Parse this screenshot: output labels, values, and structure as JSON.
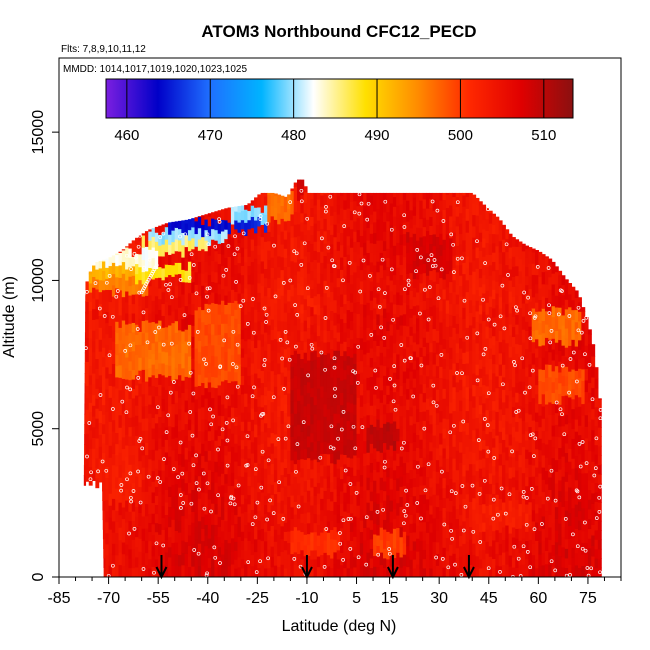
{
  "chart_data": {
    "type": "heatmap",
    "title": "ATOM3 Northbound CFC12_PECD",
    "flights_note": "Flts: 7,8,9,10,11,12",
    "mmdd_note": "MMDD: 1014,1017,1019,1020,1023,1025",
    "xlabel": "Latitude (deg N)",
    "ylabel": "Altitude (m)",
    "xlim": [
      -85,
      85
    ],
    "ylim": [
      0,
      17500
    ],
    "x_ticks": [
      -85,
      -70,
      -55,
      -40,
      -25,
      -10,
      5,
      15,
      30,
      45,
      60,
      75
    ],
    "y_ticks": [
      0,
      5000,
      10000,
      15000
    ],
    "colorbar": {
      "ticks": [
        460,
        470,
        480,
        490,
        500,
        510
      ],
      "range": [
        457.5,
        513.5
      ],
      "colors": [
        "#7b1fe0",
        "#0000c8",
        "#1f6fff",
        "#00b4ff",
        "#ffffff",
        "#ffe000",
        "#ff8c00",
        "#ff2800",
        "#e00000",
        "#8b1010"
      ]
    },
    "arrows_latitude": [
      -54,
      -10,
      16,
      39
    ],
    "anomalies": [
      {
        "lat_min": -52,
        "lat_max": -33,
        "alt_min": 11600,
        "alt_max": 12000,
        "value": 464
      },
      {
        "lat_min": -33,
        "lat_max": -22,
        "alt_min": 11700,
        "alt_max": 12050,
        "value": 466
      },
      {
        "lat_min": -58,
        "lat_max": -34,
        "alt_min": 11350,
        "alt_max": 11650,
        "value": 480
      },
      {
        "lat_min": -33,
        "lat_max": -22,
        "alt_min": 12050,
        "alt_max": 12450,
        "value": 480
      },
      {
        "lat_min": -60,
        "lat_max": -40,
        "alt_min": 10950,
        "alt_max": 11350,
        "value": 486
      },
      {
        "lat_min": -76,
        "lat_max": -55,
        "alt_min": 10500,
        "alt_max": 10950,
        "value": 483
      },
      {
        "lat_min": -76,
        "lat_max": -62,
        "alt_min": 10050,
        "alt_max": 10500,
        "value": 492
      },
      {
        "lat_min": -62,
        "lat_max": -45,
        "alt_min": 10050,
        "alt_max": 10500,
        "value": 488
      },
      {
        "lat_min": -76,
        "lat_max": -58,
        "alt_min": 9650,
        "alt_max": 10050,
        "value": 496
      },
      {
        "lat_min": -22,
        "lat_max": -14,
        "alt_min": 12050,
        "alt_max": 12950,
        "value": 497
      },
      {
        "lat_min": -13,
        "lat_max": -11,
        "alt_min": 12900,
        "alt_max": 13400,
        "value": 508
      },
      {
        "lat_min": -68,
        "lat_max": -45,
        "alt_min": 6800,
        "alt_max": 8500,
        "value": 497
      },
      {
        "lat_min": 58,
        "lat_max": 73,
        "alt_min": 7900,
        "alt_max": 9000,
        "value": 497
      },
      {
        "lat_min": 60,
        "lat_max": 74,
        "alt_min": 6000,
        "alt_max": 7000,
        "value": 499
      },
      {
        "lat_min": -44,
        "lat_max": -30,
        "alt_min": 6500,
        "alt_max": 9200,
        "value": 499
      },
      {
        "lat_min": -15,
        "lat_max": 5,
        "alt_min": 4000,
        "alt_max": 7500,
        "value": 509
      },
      {
        "lat_min": 8,
        "lat_max": 18,
        "alt_min": 4400,
        "alt_max": 5200,
        "value": 510
      },
      {
        "lat_min": 20,
        "lat_max": 34,
        "alt_min": 10200,
        "alt_max": 11500,
        "value": 508
      },
      {
        "lat_min": -15,
        "lat_max": 0,
        "alt_min": 800,
        "alt_max": 1500,
        "value": 501
      },
      {
        "lat_min": 10,
        "lat_max": 20,
        "alt_min": 700,
        "alt_max": 1500,
        "value": 500
      },
      {
        "lat_min": 40,
        "lat_max": 58,
        "alt_min": 1600,
        "alt_max": 2600,
        "value": 503
      },
      {
        "lat_min": -74,
        "lat_max": -60,
        "alt_min": 2500,
        "alt_max": 4000,
        "value": 503
      }
    ]
  }
}
